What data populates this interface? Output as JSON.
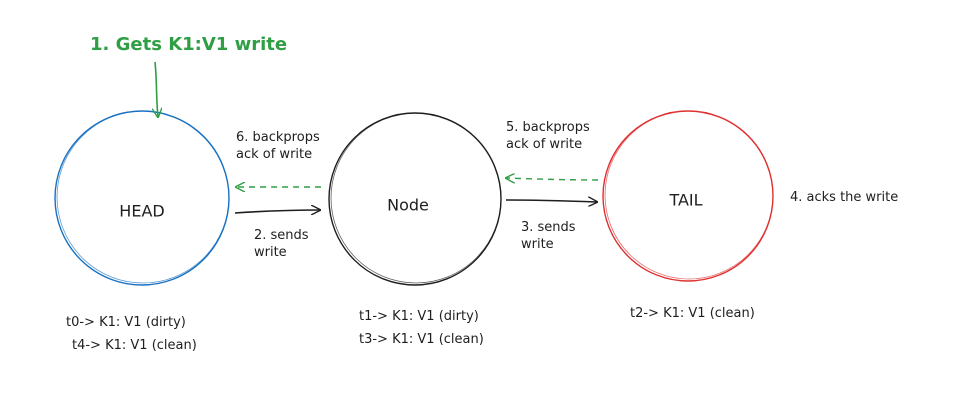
{
  "diagram": {
    "annotations": {
      "gets_write": "1. Gets K1:V1 write",
      "head_to_node_line1": "2. sends",
      "head_to_node_line2": "write",
      "node_to_tail_line1": "3. sends",
      "node_to_tail_line2": "write",
      "tail_acks": "4. acks the write",
      "tail_backprop_line1": "5. backprops",
      "tail_backprop_line2": "ack of write",
      "node_backprop_line1": "6. backprops",
      "node_backprop_line2": "ack of write"
    },
    "nodes": {
      "head": {
        "label": "HEAD",
        "color": "#1971c2"
      },
      "node": {
        "label": "Node",
        "color": "#1e1e1e"
      },
      "tail": {
        "label": "TAIL",
        "color": "#e03131"
      }
    },
    "states": {
      "head": [
        "t0-> K1: V1 (dirty)",
        "t4-> K1: V1 (clean)"
      ],
      "node": [
        "t1-> K1: V1 (dirty)",
        "t3-> K1: V1 (clean)"
      ],
      "tail": [
        "t2-> K1: V1 (clean)"
      ]
    },
    "colors": {
      "forward": "#1e1e1e",
      "ack": "#2f9e44"
    }
  }
}
